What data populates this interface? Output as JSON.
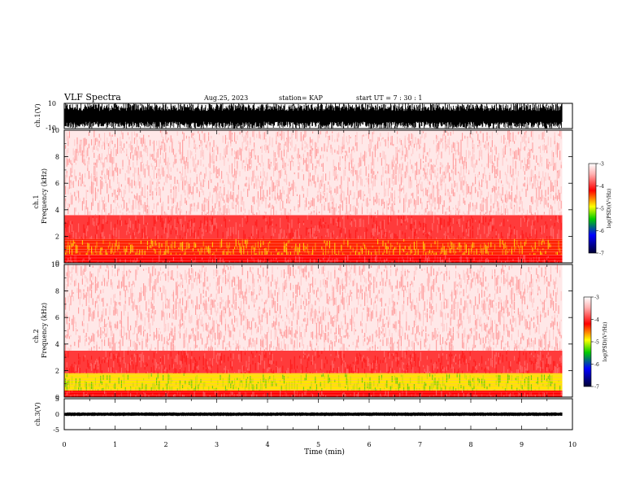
{
  "header": {
    "title": "VLF Spectra",
    "date": "Aug.25, 2023",
    "station": "station= KAP",
    "start_time": "start  UT  =   7 : 30 : 1"
  },
  "chart_data": [
    {
      "type": "line",
      "panel": "waveform-ch1",
      "ylabel": "ch.1(V)",
      "ylim": [
        -10,
        10
      ],
      "y_ticks": [
        "10",
        "-10"
      ],
      "xlim": [
        0,
        10
      ],
      "data_end_min": 9.8,
      "series": [
        {
          "amplitude_range": [
            -10,
            10
          ]
        }
      ]
    },
    {
      "type": "heatmap",
      "panel": "spectrogram-ch1",
      "ylabel": "ch.1\nFrequency (kHz)",
      "ylim": [
        0,
        10
      ],
      "y_ticks": [
        "0",
        "2",
        "4",
        "6",
        "8",
        "10"
      ],
      "xlim": [
        0,
        10
      ],
      "data_end_min": 9.8,
      "intensity_profile": [
        {
          "freq_khz": [
            0.0,
            0.6
          ],
          "level": "red"
        },
        {
          "freq_khz": [
            0.6,
            1.8
          ],
          "level": "red-yellow"
        },
        {
          "freq_khz": [
            1.8,
            3.6
          ],
          "level": "red-dense"
        },
        {
          "freq_khz": [
            3.6,
            10.0
          ],
          "level": "light-red"
        }
      ],
      "colorbar": {
        "label": "log(PSD)(V²/Hz)",
        "range": [
          -7,
          -3
        ],
        "ticks": [
          "-3",
          "-4",
          "-5",
          "-6",
          "-7"
        ]
      }
    },
    {
      "type": "heatmap",
      "panel": "spectrogram-ch2",
      "ylabel": "ch.2\nFrequency (kHz)",
      "ylim": [
        0,
        10
      ],
      "y_ticks": [
        "0",
        "2",
        "4",
        "6",
        "8",
        "10"
      ],
      "xlim": [
        0,
        10
      ],
      "data_end_min": 9.8,
      "intensity_profile": [
        {
          "freq_khz": [
            0.0,
            0.5
          ],
          "level": "red"
        },
        {
          "freq_khz": [
            0.5,
            1.8
          ],
          "level": "yellow-green"
        },
        {
          "freq_khz": [
            1.8,
            3.5
          ],
          "level": "red-dense"
        },
        {
          "freq_khz": [
            3.5,
            10.0
          ],
          "level": "light-red"
        }
      ],
      "colorbar": {
        "label": "log(PSD)(V²/Hz)",
        "range": [
          -7,
          -3
        ],
        "ticks": [
          "-3",
          "-4",
          "-5",
          "-6",
          "-7"
        ]
      }
    },
    {
      "type": "line",
      "panel": "waveform-ch3",
      "ylabel": "ch.3(V)",
      "ylim": [
        -5,
        5
      ],
      "y_ticks": [
        "5",
        "0",
        "-5"
      ],
      "xlim": [
        0,
        10
      ],
      "data_end_min": 9.8,
      "series": [
        {
          "amplitude_range": [
            -0.6,
            0.6
          ]
        }
      ]
    }
  ],
  "x_axis": {
    "label": "Time (min)",
    "ticks": [
      "0",
      "1",
      "2",
      "3",
      "4",
      "5",
      "6",
      "7",
      "8",
      "9",
      "10"
    ]
  },
  "colors": {
    "colormap": [
      "#ffffff",
      "#ffd0d0",
      "#ff0000",
      "#ffff00",
      "#00cc00",
      "#0000ff",
      "#000033"
    ],
    "trace": "#000000"
  }
}
